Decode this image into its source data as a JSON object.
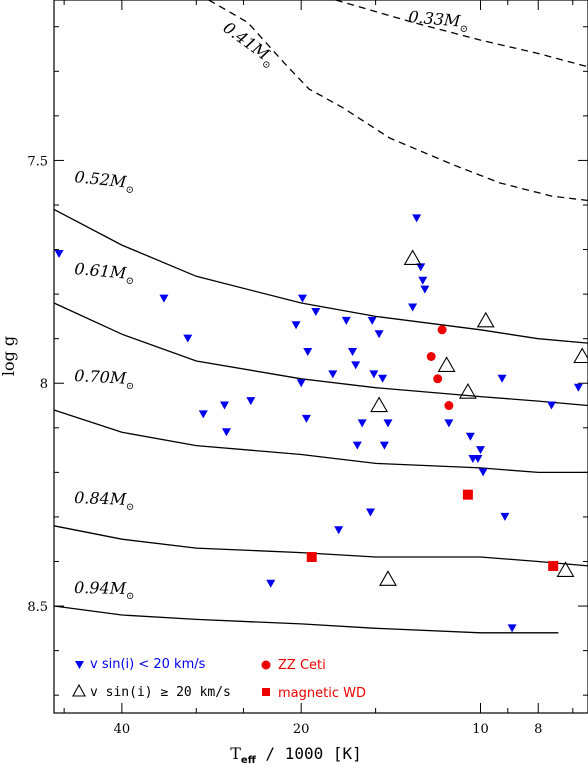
{
  "chart_data": {
    "type": "scatter",
    "xlabel": "T",
    "xlabel_sub": "eff",
    "xlabel_rest": " / 1000   [K]",
    "ylabel": "log g",
    "x_scale": "log",
    "x_reversed": true,
    "xlim": [
      52,
      6.6
    ],
    "ylim": [
      7.14,
      8.74
    ],
    "y_inverted": true,
    "x_ticks": [
      40,
      20,
      10,
      8
    ],
    "x_tick_labels": [
      "40",
      "20",
      "10",
      "8"
    ],
    "y_ticks": [
      7.5,
      8.0,
      8.5
    ],
    "y_tick_labels": [
      "7.5",
      "8",
      "8.5"
    ],
    "curves": [
      {
        "label": "0.33M",
        "style": "dashed",
        "points": [
          [
            17.5,
            7.14
          ],
          [
            13.0,
            7.19
          ],
          [
            10.0,
            7.23
          ],
          [
            8.0,
            7.26
          ],
          [
            6.6,
            7.29
          ]
        ]
      },
      {
        "label": "0.41M",
        "style": "dashed",
        "points": [
          [
            28.6,
            7.14
          ],
          [
            24.6,
            7.19
          ],
          [
            21.4,
            7.28
          ],
          [
            19.4,
            7.34
          ],
          [
            17.1,
            7.38
          ],
          [
            14.2,
            7.45
          ],
          [
            11.1,
            7.51
          ],
          [
            9.3,
            7.55
          ],
          [
            7.6,
            7.58
          ],
          [
            6.6,
            7.59
          ]
        ]
      },
      {
        "label": "0.52M",
        "style": "solid",
        "points": [
          [
            52.0,
            7.61
          ],
          [
            40.0,
            7.69
          ],
          [
            30.0,
            7.76
          ],
          [
            20.0,
            7.82
          ],
          [
            15.0,
            7.85
          ],
          [
            10.0,
            7.88
          ],
          [
            8.0,
            7.9
          ],
          [
            6.6,
            7.91
          ]
        ]
      },
      {
        "label": "0.61M",
        "style": "solid",
        "points": [
          [
            52.0,
            7.82
          ],
          [
            40.0,
            7.89
          ],
          [
            30.0,
            7.95
          ],
          [
            20.0,
            7.99
          ],
          [
            15.0,
            8.01
          ],
          [
            10.0,
            8.03
          ],
          [
            8.0,
            8.04
          ],
          [
            6.6,
            8.05
          ]
        ]
      },
      {
        "label": "0.70M",
        "style": "solid",
        "points": [
          [
            52.0,
            8.06
          ],
          [
            40.0,
            8.11
          ],
          [
            30.0,
            8.14
          ],
          [
            20.0,
            8.16
          ],
          [
            15.0,
            8.18
          ],
          [
            10.0,
            8.19
          ],
          [
            8.0,
            8.2
          ],
          [
            6.6,
            8.2
          ]
        ]
      },
      {
        "label": "0.84M",
        "style": "solid",
        "points": [
          [
            52.0,
            8.32
          ],
          [
            40.0,
            8.35
          ],
          [
            30.0,
            8.37
          ],
          [
            20.0,
            8.38
          ],
          [
            15.0,
            8.39
          ],
          [
            10.0,
            8.39
          ],
          [
            8.0,
            8.4
          ],
          [
            6.6,
            8.41
          ]
        ]
      },
      {
        "label": "0.94M",
        "style": "solid",
        "points": [
          [
            52.0,
            8.5
          ],
          [
            40.0,
            8.52
          ],
          [
            30.0,
            8.53
          ],
          [
            20.0,
            8.54
          ],
          [
            15.0,
            8.55
          ],
          [
            10.0,
            8.56
          ],
          [
            8.0,
            8.56
          ],
          [
            7.4,
            8.56
          ]
        ]
      }
    ],
    "series": [
      {
        "name": "v sin(i) < 20 km/s",
        "marker": "triangle-down",
        "color": "#0000ee",
        "points": [
          [
            51.0,
            7.71
          ],
          [
            34.0,
            7.81
          ],
          [
            31.0,
            7.9
          ],
          [
            29.2,
            8.07
          ],
          [
            26.9,
            8.05
          ],
          [
            26.7,
            8.11
          ],
          [
            24.3,
            8.04
          ],
          [
            22.5,
            8.45
          ],
          [
            20.4,
            7.87
          ],
          [
            20.0,
            8.0
          ],
          [
            19.9,
            7.81
          ],
          [
            19.6,
            8.08
          ],
          [
            19.5,
            7.93
          ],
          [
            18.9,
            7.84
          ],
          [
            17.7,
            7.98
          ],
          [
            17.3,
            8.33
          ],
          [
            16.8,
            7.86
          ],
          [
            16.4,
            7.93
          ],
          [
            16.2,
            7.96
          ],
          [
            16.1,
            8.14
          ],
          [
            15.8,
            8.09
          ],
          [
            15.3,
            8.29
          ],
          [
            15.2,
            7.86
          ],
          [
            15.1,
            7.98
          ],
          [
            14.8,
            7.89
          ],
          [
            14.5,
            8.14
          ],
          [
            14.6,
            7.99
          ],
          [
            14.3,
            8.09
          ],
          [
            13.0,
            7.83
          ],
          [
            12.8,
            7.63
          ],
          [
            12.6,
            7.74
          ],
          [
            12.5,
            7.77
          ],
          [
            12.4,
            7.79
          ],
          [
            11.3,
            8.09
          ],
          [
            10.4,
            8.12
          ],
          [
            10.3,
            8.17
          ],
          [
            10.1,
            8.17
          ],
          [
            10.0,
            8.15
          ],
          [
            9.9,
            8.2
          ],
          [
            9.1,
            8.3
          ],
          [
            8.85,
            8.55
          ],
          [
            9.2,
            7.99
          ],
          [
            7.6,
            8.05
          ],
          [
            6.85,
            8.01
          ]
        ]
      },
      {
        "name": "v sin(i) ≥ 20 km/s",
        "marker": "triangle-open",
        "color": "#000000",
        "points": [
          [
            13.0,
            7.72
          ],
          [
            11.4,
            7.96
          ],
          [
            10.5,
            8.02
          ],
          [
            9.8,
            7.86
          ],
          [
            6.75,
            7.94
          ],
          [
            14.3,
            8.44
          ],
          [
            14.8,
            8.05
          ],
          [
            7.2,
            8.42
          ]
        ]
      },
      {
        "name": "ZZ Ceti",
        "marker": "circle",
        "color": "#ee0000",
        "points": [
          [
            11.6,
            7.88
          ],
          [
            12.1,
            7.94
          ],
          [
            11.8,
            7.99
          ],
          [
            11.3,
            8.05
          ]
        ]
      },
      {
        "name": "magnetic WD",
        "marker": "square",
        "color": "#ee0000",
        "points": [
          [
            10.5,
            8.25
          ],
          [
            19.2,
            8.39
          ],
          [
            7.55,
            8.41
          ]
        ]
      }
    ],
    "legend_placement": "bottom-left"
  }
}
